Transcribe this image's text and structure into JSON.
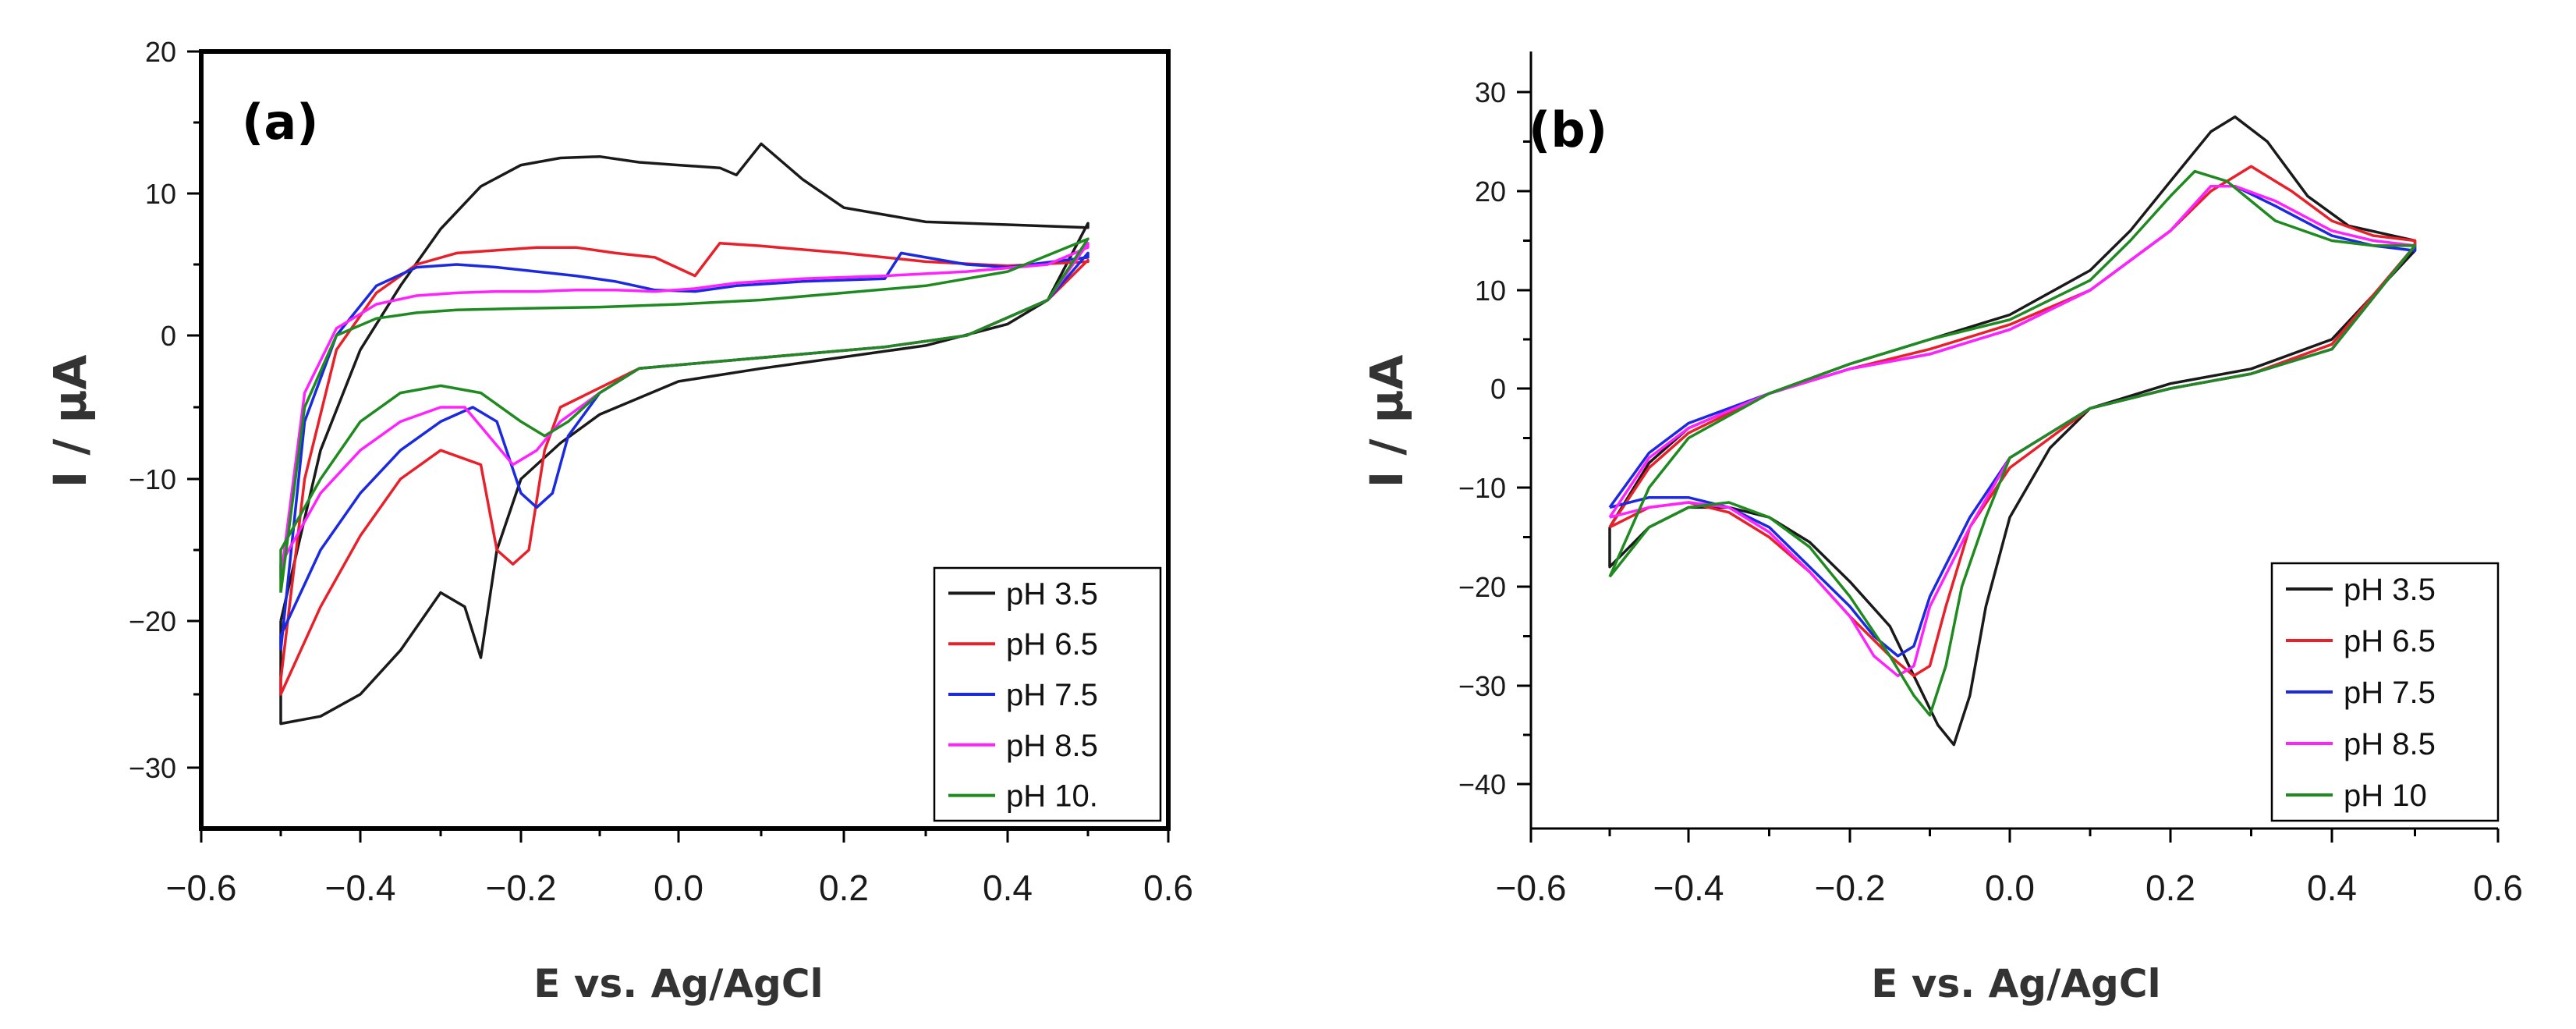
{
  "chart_data": [
    {
      "type": "line",
      "panel_label": "(a)",
      "xlabel": "E vs. Ag/AgCl",
      "ylabel": "I / µA",
      "xlim": [
        -0.6,
        0.6
      ],
      "ylim": [
        -35,
        20
      ],
      "xticks": [
        -0.6,
        -0.4,
        -0.2,
        0.0,
        0.2,
        0.4,
        0.6
      ],
      "xtick_labels": [
        "−0.6",
        "−0.4",
        "−0.2",
        "0.0",
        "0.2",
        "0.4",
        "0.6"
      ],
      "yticks": [
        -30,
        -20,
        -10,
        0,
        10,
        20
      ],
      "ytick_labels": [
        "−30",
        "−20",
        "−10",
        "0",
        "10",
        "20"
      ],
      "grid": false,
      "legend_position": "bottom-right",
      "series": [
        {
          "name": "pH 3.5",
          "color": "#1a1a1a",
          "x": [
            -0.5,
            -0.45,
            -0.4,
            -0.35,
            -0.3,
            -0.25,
            -0.2,
            -0.15,
            -0.1,
            -0.05,
            0.0,
            0.05,
            0.07,
            0.1,
            0.15,
            0.2,
            0.3,
            0.4,
            0.5,
            0.5,
            0.45,
            0.4,
            0.3,
            0.2,
            0.1,
            0.0,
            -0.1,
            -0.15,
            -0.2,
            -0.23,
            -0.25,
            -0.27,
            -0.3,
            -0.35,
            -0.4,
            -0.45,
            -0.5
          ],
          "y": [
            -20,
            -8,
            -1,
            3.5,
            7.5,
            10.5,
            12,
            12.5,
            12.6,
            12.2,
            12,
            11.8,
            11.3,
            13.5,
            11,
            9,
            8,
            7.8,
            7.6,
            7.9,
            2.5,
            0.8,
            -0.7,
            -1.5,
            -2.3,
            -3.2,
            -5.5,
            -7.5,
            -10,
            -15,
            -22.5,
            -19,
            -18,
            -22,
            -25,
            -26.5,
            -27
          ]
        },
        {
          "name": "pH 6.5",
          "color": "#e8202a",
          "x": [
            -0.5,
            -0.47,
            -0.43,
            -0.38,
            -0.33,
            -0.28,
            -0.23,
            -0.18,
            -0.13,
            -0.08,
            -0.03,
            0.02,
            0.05,
            0.1,
            0.2,
            0.3,
            0.4,
            0.5,
            0.5,
            0.45,
            0.35,
            0.25,
            0.15,
            0.05,
            -0.05,
            -0.15,
            -0.17,
            -0.19,
            -0.21,
            -0.23,
            -0.25,
            -0.3,
            -0.35,
            -0.4,
            -0.45,
            -0.5
          ],
          "y": [
            -24,
            -10,
            -1,
            3,
            5,
            5.8,
            6,
            6.2,
            6.2,
            5.8,
            5.5,
            4.2,
            6.5,
            6.3,
            5.8,
            5.2,
            4.9,
            5.2,
            5.3,
            2.5,
            0,
            -0.8,
            -1.3,
            -1.8,
            -2.3,
            -5,
            -8,
            -15,
            -16,
            -15,
            -9,
            -8,
            -10,
            -14,
            -19,
            -25
          ]
        },
        {
          "name": "pH 7.5",
          "color": "#1b2ae0",
          "x": [
            -0.5,
            -0.47,
            -0.43,
            -0.38,
            -0.33,
            -0.28,
            -0.23,
            -0.18,
            -0.13,
            -0.08,
            -0.03,
            0.02,
            0.07,
            0.15,
            0.25,
            0.27,
            0.3,
            0.35,
            0.4,
            0.5,
            0.5,
            0.45,
            0.35,
            0.25,
            0.15,
            0.05,
            -0.05,
            -0.1,
            -0.14,
            -0.16,
            -0.18,
            -0.2,
            -0.23,
            -0.26,
            -0.3,
            -0.35,
            -0.4,
            -0.45,
            -0.5
          ],
          "y": [
            -22,
            -6,
            0,
            3.5,
            4.8,
            5,
            4.8,
            4.5,
            4.2,
            3.8,
            3.2,
            3.1,
            3.5,
            3.8,
            4,
            5.8,
            5.5,
            5,
            4.8,
            5.5,
            5.8,
            2.5,
            0,
            -0.8,
            -1.3,
            -1.8,
            -2.3,
            -4,
            -7,
            -11,
            -12,
            -11,
            -6,
            -5,
            -6,
            -8,
            -11,
            -15,
            -21
          ]
        },
        {
          "name": "pH 8.5",
          "color": "#ff22ff",
          "x": [
            -0.5,
            -0.47,
            -0.43,
            -0.38,
            -0.33,
            -0.28,
            -0.23,
            -0.18,
            -0.13,
            -0.08,
            -0.03,
            0.02,
            0.07,
            0.15,
            0.25,
            0.35,
            0.45,
            0.5,
            0.5,
            0.45,
            0.35,
            0.25,
            0.15,
            0.05,
            -0.05,
            -0.1,
            -0.15,
            -0.18,
            -0.21,
            -0.24,
            -0.27,
            -0.3,
            -0.35,
            -0.4,
            -0.45,
            -0.5
          ],
          "y": [
            -17,
            -4,
            0.5,
            2.2,
            2.8,
            3,
            3.1,
            3.1,
            3.2,
            3.2,
            3.1,
            3.3,
            3.7,
            4,
            4.2,
            4.5,
            5,
            6.2,
            6.5,
            2.5,
            0,
            -0.8,
            -1.3,
            -1.8,
            -2.3,
            -4,
            -6,
            -8,
            -9,
            -7,
            -5,
            -5,
            -6,
            -8,
            -11,
            -16
          ]
        },
        {
          "name": "pH 10.",
          "color": "#1f8a1f",
          "x": [
            -0.5,
            -0.47,
            -0.43,
            -0.38,
            -0.33,
            -0.28,
            -0.2,
            -0.1,
            0.0,
            0.1,
            0.2,
            0.3,
            0.4,
            0.5,
            0.5,
            0.45,
            0.35,
            0.25,
            0.15,
            0.05,
            -0.05,
            -0.1,
            -0.14,
            -0.17,
            -0.2,
            -0.25,
            -0.3,
            -0.35,
            -0.4,
            -0.45,
            -0.5
          ],
          "y": [
            -18,
            -5,
            0,
            1.2,
            1.6,
            1.8,
            1.9,
            2,
            2.2,
            2.5,
            3,
            3.5,
            4.5,
            6.8,
            6.8,
            2.5,
            0,
            -0.8,
            -1.3,
            -1.8,
            -2.3,
            -4,
            -6,
            -7,
            -6,
            -4,
            -3.5,
            -4,
            -6,
            -10,
            -15
          ]
        }
      ]
    },
    {
      "type": "line",
      "panel_label": "(b)",
      "xlabel": "E vs. Ag/AgCl",
      "ylabel": "I / µA",
      "xlim": [
        -0.6,
        0.6
      ],
      "ylim": [
        -45,
        35
      ],
      "xticks": [
        -0.6,
        -0.4,
        -0.2,
        0.0,
        0.2,
        0.4,
        0.6
      ],
      "xtick_labels": [
        "−0.6",
        "−0.4",
        "−0.2",
        "0.0",
        "0.2",
        "0.4",
        "0.6"
      ],
      "yticks": [
        -40,
        -30,
        -20,
        -10,
        0,
        10,
        20,
        30
      ],
      "ytick_labels": [
        "−40",
        "−30",
        "−20",
        "−10",
        "0",
        "10",
        "20",
        "30"
      ],
      "grid": false,
      "legend_position": "bottom-right",
      "series": [
        {
          "name": "pH 3.5",
          "color": "#1a1a1a",
          "x": [
            -0.5,
            -0.45,
            -0.4,
            -0.3,
            -0.2,
            -0.1,
            0.0,
            0.1,
            0.15,
            0.2,
            0.25,
            0.28,
            0.32,
            0.37,
            0.42,
            0.5,
            0.5,
            0.4,
            0.3,
            0.2,
            0.1,
            0.05,
            0.0,
            -0.03,
            -0.05,
            -0.07,
            -0.09,
            -0.12,
            -0.15,
            -0.2,
            -0.25,
            -0.3,
            -0.35,
            -0.4,
            -0.45,
            -0.5
          ],
          "y": [
            -14,
            -7.5,
            -4,
            -0.5,
            2.5,
            5,
            7.5,
            12,
            16,
            21,
            26,
            27.5,
            25,
            19.5,
            16.5,
            15,
            14,
            5,
            2,
            0.5,
            -2,
            -6,
            -13,
            -22,
            -31,
            -36,
            -34,
            -29,
            -24,
            -19.5,
            -15.5,
            -13,
            -12,
            -12,
            -14,
            -18
          ]
        },
        {
          "name": "pH 6.5",
          "color": "#e8202a",
          "x": [
            -0.5,
            -0.45,
            -0.4,
            -0.3,
            -0.2,
            -0.1,
            0.0,
            0.1,
            0.2,
            0.25,
            0.3,
            0.35,
            0.4,
            0.45,
            0.5,
            0.5,
            0.4,
            0.3,
            0.2,
            0.1,
            0.0,
            -0.05,
            -0.08,
            -0.1,
            -0.12,
            -0.15,
            -0.2,
            -0.25,
            -0.3,
            -0.35,
            -0.4,
            -0.45,
            -0.5
          ],
          "y": [
            -14,
            -8,
            -4.5,
            -0.5,
            2,
            4,
            6.5,
            10,
            16,
            20,
            22.5,
            20,
            17,
            15.5,
            15,
            14.5,
            4.5,
            1.5,
            0,
            -2,
            -8,
            -14,
            -22,
            -28,
            -29,
            -27,
            -23,
            -18.5,
            -15,
            -12.5,
            -11.5,
            -12,
            -14
          ]
        },
        {
          "name": "pH 7.5",
          "color": "#1b2ae0",
          "x": [
            -0.5,
            -0.45,
            -0.4,
            -0.3,
            -0.2,
            -0.1,
            0.0,
            0.1,
            0.2,
            0.25,
            0.28,
            0.33,
            0.4,
            0.45,
            0.5,
            0.5,
            0.4,
            0.3,
            0.2,
            0.1,
            0.0,
            -0.05,
            -0.1,
            -0.12,
            -0.14,
            -0.17,
            -0.2,
            -0.25,
            -0.3,
            -0.35,
            -0.4,
            -0.45,
            -0.5
          ],
          "y": [
            -12,
            -6.5,
            -3.5,
            -0.5,
            2,
            3.5,
            6,
            10,
            16,
            20.5,
            20.5,
            18.5,
            15.5,
            14.5,
            14,
            14.5,
            4,
            1.5,
            0,
            -2,
            -7,
            -13,
            -21,
            -26,
            -27,
            -25,
            -22,
            -18,
            -14,
            -12,
            -11,
            -11,
            -12
          ]
        },
        {
          "name": "pH 8.5",
          "color": "#ff22ff",
          "x": [
            -0.5,
            -0.45,
            -0.4,
            -0.3,
            -0.2,
            -0.1,
            0.0,
            0.1,
            0.2,
            0.25,
            0.28,
            0.33,
            0.4,
            0.45,
            0.5,
            0.5,
            0.4,
            0.3,
            0.2,
            0.1,
            0.0,
            -0.05,
            -0.1,
            -0.12,
            -0.14,
            -0.17,
            -0.2,
            -0.25,
            -0.3,
            -0.35,
            -0.4,
            -0.45,
            -0.5
          ],
          "y": [
            -13,
            -7,
            -4,
            -0.5,
            2,
            3.5,
            6,
            10,
            16,
            20.5,
            20.5,
            19,
            16,
            15,
            14.5,
            14.5,
            4,
            1.5,
            0,
            -2,
            -7,
            -14,
            -22,
            -28,
            -29,
            -27,
            -23,
            -18.5,
            -14.5,
            -12,
            -11.5,
            -12,
            -13
          ]
        },
        {
          "name": "pH 10",
          "color": "#1f8a1f",
          "x": [
            -0.5,
            -0.45,
            -0.4,
            -0.3,
            -0.2,
            -0.1,
            0.0,
            0.1,
            0.15,
            0.2,
            0.23,
            0.27,
            0.33,
            0.4,
            0.45,
            0.5,
            0.5,
            0.4,
            0.3,
            0.2,
            0.1,
            0.0,
            -0.03,
            -0.06,
            -0.08,
            -0.1,
            -0.12,
            -0.15,
            -0.2,
            -0.25,
            -0.3,
            -0.35,
            -0.4,
            -0.45,
            -0.5
          ],
          "y": [
            -19,
            -10,
            -5,
            -0.5,
            2.5,
            5,
            7,
            11,
            15,
            19.5,
            22,
            21,
            17,
            15,
            14.5,
            14.5,
            14.5,
            4,
            1.5,
            0,
            -2,
            -7,
            -13,
            -20,
            -28,
            -33,
            -31,
            -27,
            -21,
            -16,
            -13,
            -11.5,
            -12,
            -14,
            -19
          ]
        }
      ]
    }
  ]
}
